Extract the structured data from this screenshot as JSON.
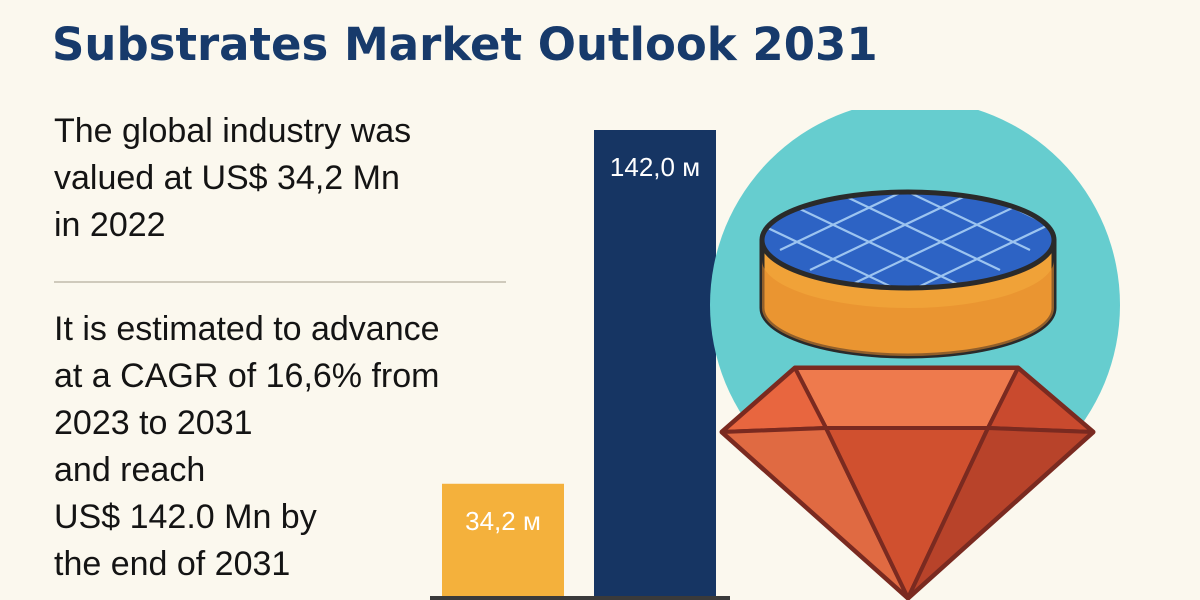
{
  "header": {
    "title": "Substrates Market Outlook 2031"
  },
  "facts": {
    "valuation_text": "The global industry was\nvalued at US$ 34,2 Mn\nin 2022",
    "forecast_text": "It is estimated to advance\nat a CAGR of 16,6% from\n2023 to 2031\nand reach\nUS$ 142.0 Mn by\nthe end of 2031"
  },
  "colors": {
    "background": "#fbf8ee",
    "title": "#173a6b",
    "bar_2022": "#f4b13c",
    "bar_2031": "#163563",
    "circle": "#66cdcf",
    "gem": "#dd5a38",
    "wafer": "#2d63c4"
  },
  "icons": [
    "substrate-wafer-icon",
    "gem-icon"
  ],
  "chart_data": {
    "type": "bar",
    "categories": [
      "",
      ""
    ],
    "values": [
      34.2,
      142.0
    ],
    "data_labels": [
      "34,2 м",
      "142,0 м"
    ],
    "series_colors": [
      "#f4b13c",
      "#163563"
    ],
    "title": "",
    "xlabel": "",
    "ylabel": "",
    "ylim": [
      0,
      142.0
    ],
    "grid": false,
    "legend": "none"
  }
}
